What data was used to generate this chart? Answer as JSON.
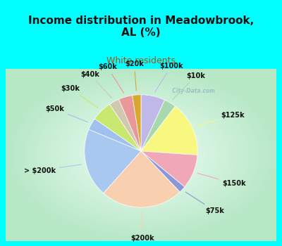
{
  "title": "Income distribution in Meadowbrook,\nAL (%)",
  "subtitle": "White residents",
  "slices": [
    {
      "label": "$100k",
      "value": 7.0,
      "color": "#c0b8e8"
    },
    {
      "label": "$10k",
      "value": 3.5,
      "color": "#a8d8b0"
    },
    {
      "label": "$125k",
      "value": 16.0,
      "color": "#f8f880"
    },
    {
      "label": "$150k",
      "value": 10.0,
      "color": "#f0a8b8"
    },
    {
      "label": "$75k",
      "value": 2.0,
      "color": "#8898d8"
    },
    {
      "label": "$200k",
      "value": 24.0,
      "color": "#f8d0b0"
    },
    {
      "label": "> $200k",
      "value": 20.0,
      "color": "#a8c8f0"
    },
    {
      "label": "$50k",
      "value": 3.5,
      "color": "#a0c0f0"
    },
    {
      "label": "$30k",
      "value": 6.0,
      "color": "#c8e870"
    },
    {
      "label": "$40k",
      "value": 3.0,
      "color": "#d0c8b0"
    },
    {
      "label": "$60k",
      "value": 4.0,
      "color": "#e89898"
    },
    {
      "label": "$20k",
      "value": 2.5,
      "color": "#d8a830"
    }
  ],
  "bg_color_top": "#00ffff",
  "bg_color_chart_center": "#f0fff8",
  "bg_color_chart_edge": "#b8e8c8",
  "title_color": "#111111",
  "subtitle_color": "#b05010",
  "label_color": "#111111",
  "watermark": "  City-Data.com",
  "title_fontsize": 11,
  "subtitle_fontsize": 9,
  "label_fontsize": 7
}
